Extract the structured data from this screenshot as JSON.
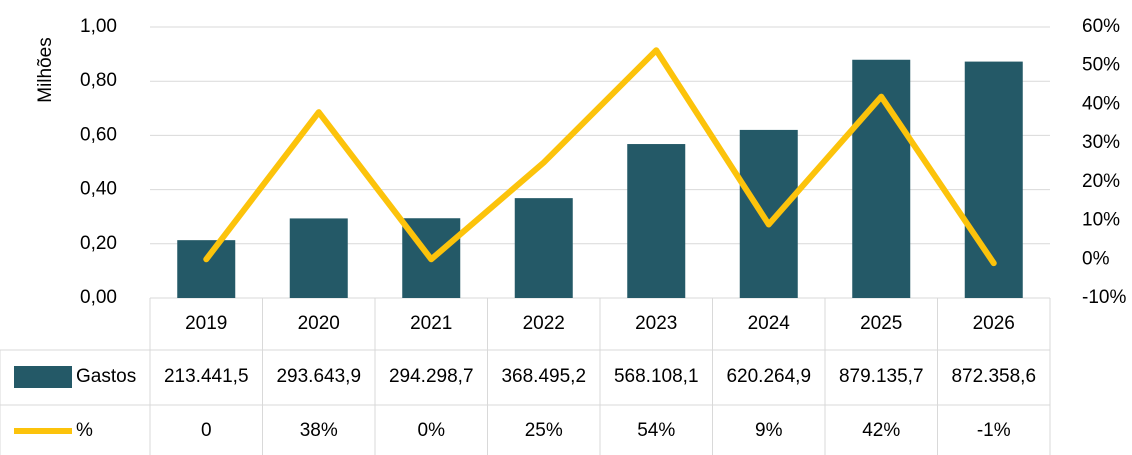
{
  "chart_data": {
    "type": "bar_line",
    "ylabel": "Milhões",
    "categories": [
      "2019",
      "2020",
      "2021",
      "2022",
      "2023",
      "2024",
      "2025",
      "2026"
    ],
    "series": [
      {
        "name": "Gastos",
        "color": "#245967",
        "values": [
          0.2134415,
          0.2936439,
          0.2942987,
          0.3684952,
          0.5681081,
          0.6202649,
          0.8791357,
          0.8723586
        ],
        "value_labels": [
          "213.441,5",
          "293.643,9",
          "294.298,7",
          "368.495,2",
          "568.108,1",
          "620.264,9",
          "879.135,7",
          "872.358,6"
        ]
      },
      {
        "name": "%",
        "color": "#fcc30b",
        "axis": "y2",
        "values": [
          0,
          38,
          0,
          25,
          54,
          9,
          42,
          -1
        ],
        "value_labels": [
          "0",
          "38%",
          "0%",
          "25%",
          "54%",
          "9%",
          "42%",
          "-1%"
        ]
      }
    ],
    "ylim": [
      0,
      1
    ],
    "yticks": [
      {
        "value": 0,
        "label": "0,00"
      },
      {
        "value": 0.2,
        "label": "0,20"
      },
      {
        "value": 0.4,
        "label": "0,40"
      },
      {
        "value": 0.6,
        "label": "0,60"
      },
      {
        "value": 0.8,
        "label": "0,80"
      },
      {
        "value": 1,
        "label": "1,00"
      }
    ],
    "y2lim": [
      -10,
      60
    ],
    "y2ticks": [
      {
        "value": -10,
        "label": "-10%"
      },
      {
        "value": 0,
        "label": "0%"
      },
      {
        "value": 10,
        "label": "10%"
      },
      {
        "value": 20,
        "label": "20%"
      },
      {
        "value": 30,
        "label": "30%"
      },
      {
        "value": 40,
        "label": "40%"
      },
      {
        "value": 50,
        "label": "50%"
      },
      {
        "value": 60,
        "label": "60%"
      }
    ],
    "grid": true
  }
}
